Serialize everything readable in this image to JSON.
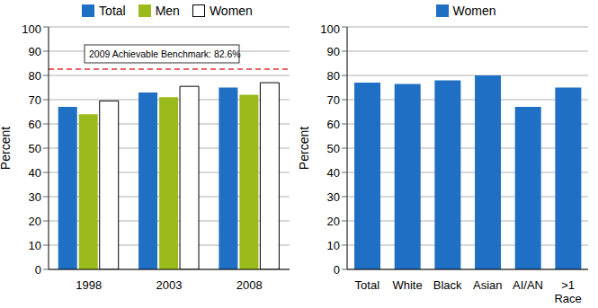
{
  "chart_data": [
    {
      "type": "bar",
      "categories": [
        "1998",
        "2003",
        "2008"
      ],
      "series": [
        {
          "name": "Total",
          "color": "#1f6fc4",
          "values": [
            67,
            73,
            75
          ]
        },
        {
          "name": "Men",
          "color": "#9bbb1d",
          "values": [
            64,
            71,
            72
          ]
        },
        {
          "name": "Women",
          "color": "#ffffff",
          "values": [
            69.5,
            75.5,
            77
          ]
        }
      ],
      "ylim": [
        0,
        100
      ],
      "yticks": [
        0,
        10,
        20,
        30,
        40,
        50,
        60,
        70,
        80,
        90,
        100
      ],
      "y_label": "Percent",
      "grid": true,
      "legend": "top",
      "annotations": [
        {
          "text": "2009 Achievable Benchmark: 82.6%",
          "value": 82.6,
          "color": "#e03030",
          "line_style": "dashed"
        }
      ]
    },
    {
      "type": "bar",
      "categories": [
        "Total",
        "White",
        "Black",
        "Asian",
        "AI/AN",
        ">1 Race"
      ],
      "series": [
        {
          "name": "Women",
          "color": "#1f6fc4",
          "values": [
            77,
            76.5,
            78,
            80,
            67,
            75
          ]
        }
      ],
      "ylim": [
        0,
        100
      ],
      "yticks": [
        0,
        10,
        20,
        30,
        40,
        50,
        60,
        70,
        80,
        90,
        100
      ],
      "y_label": "Percent",
      "grid": true,
      "legend": "top"
    }
  ]
}
